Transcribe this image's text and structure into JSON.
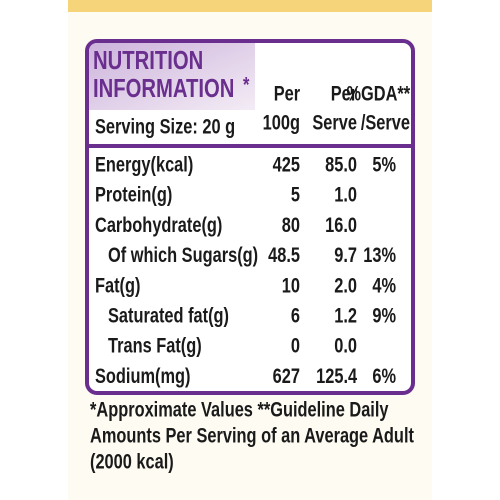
{
  "header": {
    "title_line1": "NUTRITION",
    "title_line2": "INFORMATION",
    "title_mark": "*",
    "serving_size": "Serving Size: 20 g",
    "columns": [
      [
        "Per",
        "100g"
      ],
      [
        "Per",
        "Serve"
      ],
      [
        "%GDA**",
        "/Serve"
      ]
    ]
  },
  "table": {
    "rows": [
      [
        "Energy(kcal)",
        "425",
        "85.0",
        "5%"
      ],
      [
        "Protein(g)",
        "5",
        "1.0",
        null
      ],
      [
        "Carbohydrate(g)",
        "80",
        "16.0",
        null
      ],
      [
        "Of which Sugars(g)",
        "48.5",
        "9.7",
        "13%"
      ],
      [
        "Fat(g)",
        "10",
        "2.0",
        "4%"
      ],
      [
        "Saturated fat(g)",
        "6",
        "1.2",
        "9%"
      ],
      [
        "Trans Fat(g)",
        "0",
        "0.0",
        null
      ],
      [
        "Sodium(mg)",
        "627",
        "125.4",
        "6%"
      ]
    ]
  },
  "footnote": {
    "lines": [
      "*Approximate Values **Guideline Daily",
      "Amounts Per Serving of an Average Adult",
      "(2000 kcal)"
    ]
  }
}
